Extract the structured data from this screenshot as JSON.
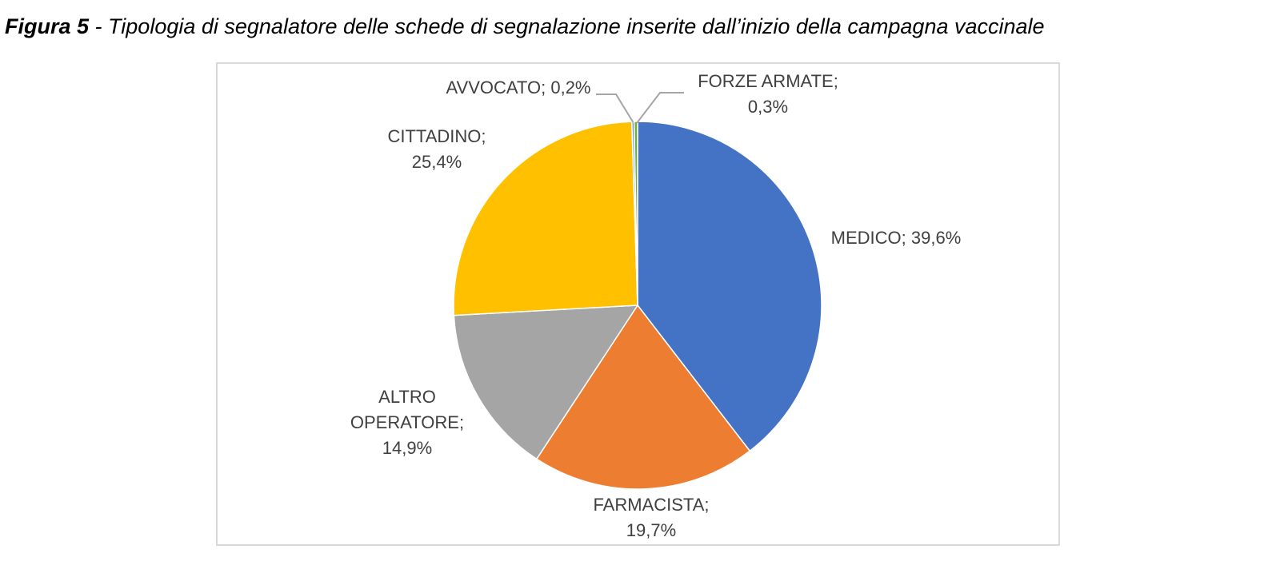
{
  "chart_data": {
    "type": "pie",
    "title": "Figura 5",
    "subtitle": "- Tipologia di segnalatore delle schede di segnalazione inserite dall’inizio della campagna vaccinale",
    "categories": [
      "MEDICO",
      "FARMACISTA",
      "ALTRO OPERATORE",
      "CITTADINO",
      "AVVOCATO",
      "FORZE ARMATE"
    ],
    "values": [
      39.6,
      19.7,
      14.9,
      25.4,
      0.2,
      0.3
    ],
    "value_labels": [
      "39,6%",
      "19,7%",
      "14,9%",
      "25,4%",
      "0,2%",
      "0,3%"
    ],
    "label_separator": ";",
    "colors": [
      "#4472c4",
      "#ed7d31",
      "#a5a5a5",
      "#ffc000",
      "#5b9bd5",
      "#70ad47"
    ]
  }
}
